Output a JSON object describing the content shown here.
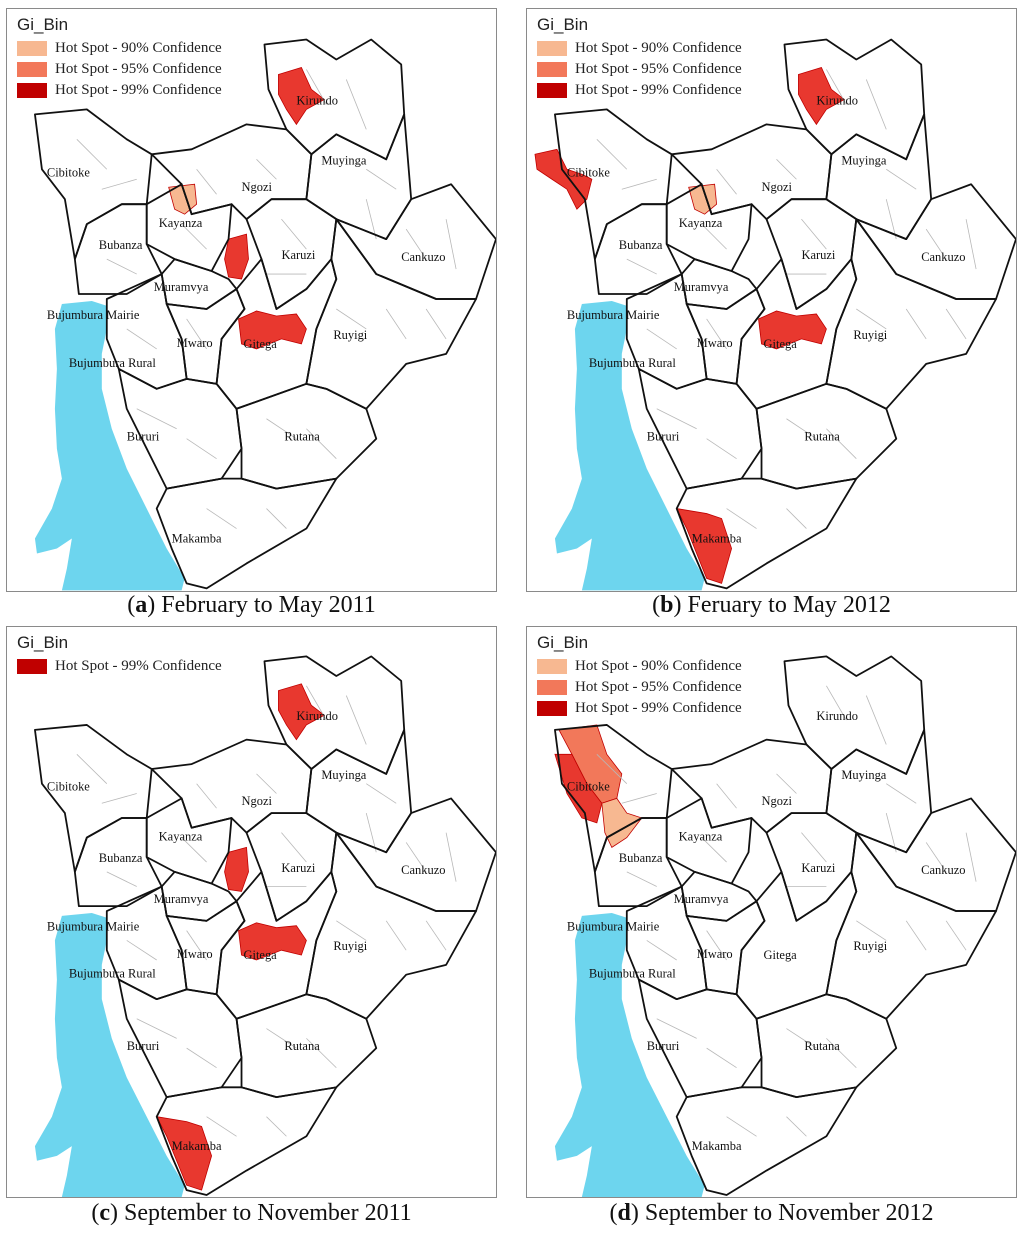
{
  "colors": {
    "conf90": "#f7b891",
    "conf95": "#f2785a",
    "conf99": "#c00000",
    "hot_fill": "#e8382f",
    "lake": "#6dd5ee",
    "border": "#111111",
    "commune": "#b8b8b8"
  },
  "province_names": {
    "kirundo": "Kirundo",
    "muyinga": "Muyinga",
    "cibitoke": "Cibitoke",
    "ngozi": "Ngozi",
    "kayanza": "Kayanza",
    "bubanza": "Bubanza",
    "karuzi": "Karuzi",
    "cankuzo": "Cankuzo",
    "muramvya": "Muramvya",
    "bujumbura_mairie": "Bujumbura Mairie",
    "mwaro": "Mwaro",
    "gitega": "Gitega",
    "ruyigi": "Ruyigi",
    "bujumbura_rural": "Bujumbura Rural",
    "bururi": "Bururi",
    "rutana": "Rutana",
    "makamba": "Makamba"
  },
  "panels": [
    {
      "id": "a",
      "letter": "a",
      "caption": "February to May 2011",
      "legend_title": "Gi_Bin",
      "legend": [
        {
          "label": "Hot Spot - 90% Confidence",
          "level": "conf90"
        },
        {
          "label": "Hot Spot - 95% Confidence",
          "level": "conf95"
        },
        {
          "label": "Hot Spot - 99% Confidence",
          "level": "conf99"
        }
      ],
      "hotspots": [
        {
          "province": "kirundo",
          "level": "conf99"
        },
        {
          "province": "kayanza",
          "level": "conf90"
        },
        {
          "province": "ngozi_south",
          "level": "conf99"
        },
        {
          "province": "gitega",
          "level": "conf99"
        }
      ]
    },
    {
      "id": "b",
      "letter": "b",
      "caption": "Feruary to May 2012",
      "legend_title": "Gi_Bin",
      "legend": [
        {
          "label": "Hot Spot - 90% Confidence",
          "level": "conf90"
        },
        {
          "label": "Hot Spot - 95% Confidence",
          "level": "conf95"
        },
        {
          "label": "Hot Spot - 99% Confidence",
          "level": "conf99"
        }
      ],
      "hotspots": [
        {
          "province": "kirundo",
          "level": "conf99"
        },
        {
          "province": "cibitoke",
          "level": "conf99"
        },
        {
          "province": "kayanza",
          "level": "conf90"
        },
        {
          "province": "gitega",
          "level": "conf99"
        },
        {
          "province": "makamba",
          "level": "conf99"
        }
      ]
    },
    {
      "id": "c",
      "letter": "c",
      "caption": "September to November 2011",
      "legend_title": "Gi_Bin",
      "legend": [
        {
          "label": "Hot Spot - 99% Confidence",
          "level": "conf99"
        }
      ],
      "hotspots": [
        {
          "province": "kirundo",
          "level": "conf99"
        },
        {
          "province": "ngozi_south",
          "level": "conf99"
        },
        {
          "province": "gitega",
          "level": "conf99"
        },
        {
          "province": "makamba",
          "level": "conf99"
        }
      ]
    },
    {
      "id": "d",
      "letter": "d",
      "caption": "September to November 2012",
      "legend_title": "Gi_Bin",
      "legend": [
        {
          "label": "Hot Spot - 90% Confidence",
          "level": "conf90"
        },
        {
          "label": "Hot Spot - 95% Confidence",
          "level": "conf95"
        },
        {
          "label": "Hot Spot - 99% Confidence",
          "level": "conf99"
        }
      ],
      "hotspots": [
        {
          "province": "cibitoke_north",
          "level": "conf95"
        },
        {
          "province": "cibitoke_west",
          "level": "conf99"
        },
        {
          "province": "cibitoke_south",
          "level": "conf90"
        }
      ]
    }
  ]
}
